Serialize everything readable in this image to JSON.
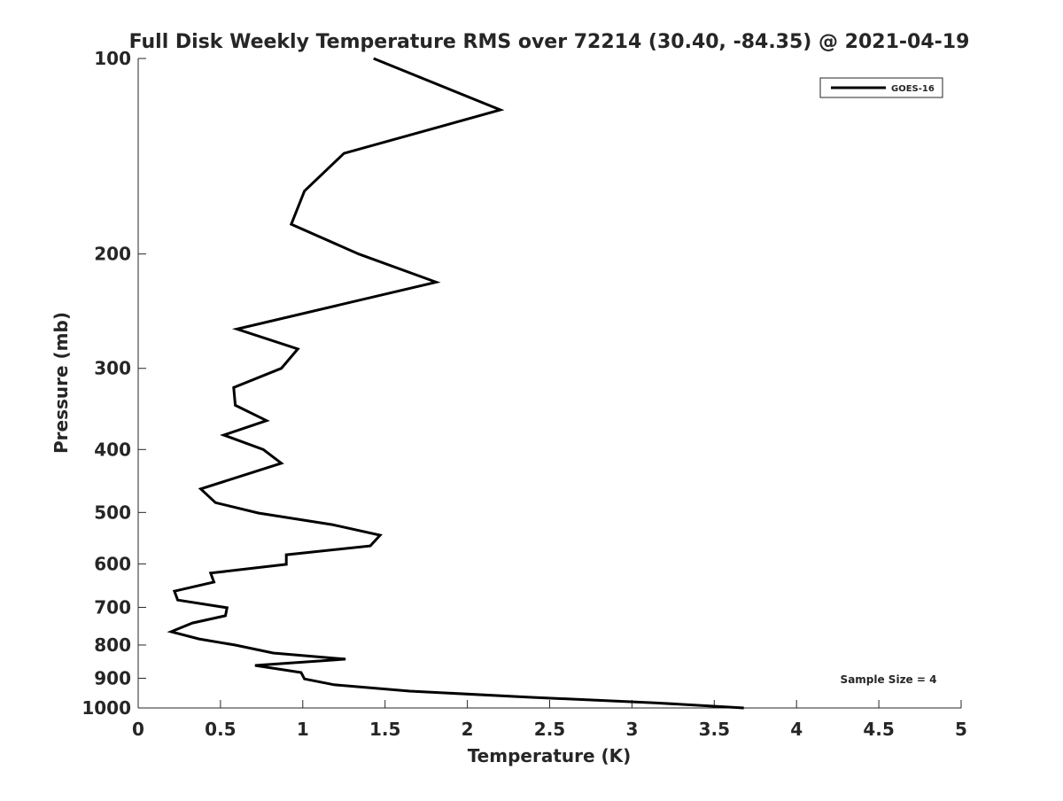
{
  "chart_data": {
    "type": "line",
    "title": "Full Disk Weekly Temperature RMS over 72214 (30.40, -84.35) @ 2021-04-19",
    "xlabel": "Temperature (K)",
    "ylabel": "Pressure (mb)",
    "xlim": [
      0,
      5
    ],
    "ylim": [
      100,
      1000
    ],
    "yscale": "log",
    "yreversed": true,
    "xticks": [
      "0",
      "0.5",
      "1",
      "1.5",
      "2",
      "2.5",
      "3",
      "3.5",
      "4",
      "4.5",
      "5"
    ],
    "yticks": [
      "100",
      "200",
      "300",
      "400",
      "500",
      "600",
      "700",
      "800",
      "900",
      "1000"
    ],
    "legend": {
      "entries": [
        "GOES-16"
      ],
      "placement": "top-right"
    },
    "annotation": "Sample Size = 4",
    "grid": false,
    "series": [
      {
        "name": "GOES-16",
        "color": "#000000",
        "temperature": [
          1.43,
          2.2,
          1.25,
          1.01,
          0.93,
          1.34,
          1.81,
          0.6,
          0.97,
          0.87,
          0.58,
          0.59,
          0.78,
          0.52,
          0.76,
          0.87,
          0.38,
          0.47,
          0.73,
          1.18,
          1.47,
          1.41,
          0.9,
          0.9,
          0.44,
          0.46,
          0.22,
          0.24,
          0.54,
          0.53,
          0.33,
          0.2,
          0.37,
          0.59,
          0.82,
          1.26,
          0.71,
          0.99,
          1.01,
          1.19,
          1.65,
          2.39,
          3.14,
          3.68
        ],
        "pressure": [
          100,
          120,
          140,
          160,
          180,
          200,
          221,
          261,
          280,
          300,
          321,
          342,
          361,
          380,
          400,
          420,
          460,
          483,
          501,
          522,
          542,
          563,
          581,
          601,
          620,
          640,
          661,
          682,
          701,
          721,
          740,
          763,
          783,
          800,
          823,
          841,
          860,
          882,
          902,
          921,
          942,
          963,
          982,
          1000
        ]
      }
    ]
  }
}
